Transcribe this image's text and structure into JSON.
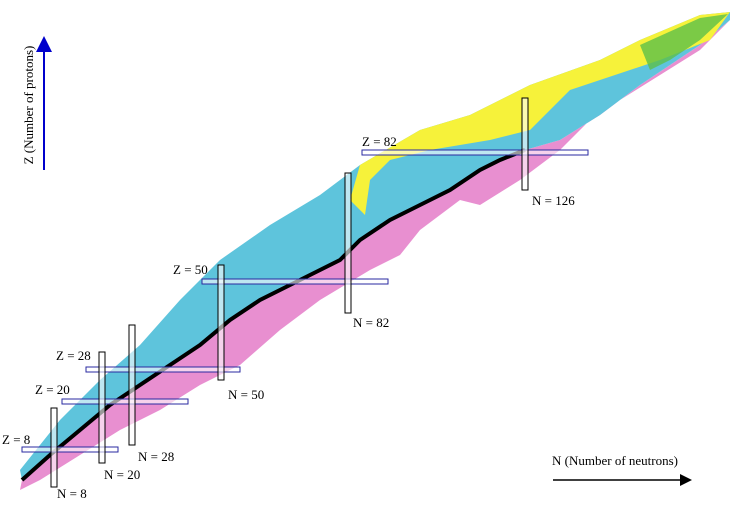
{
  "axes": {
    "y_label": "Z (Number of protons)",
    "x_label": "N (Number of neutrons)"
  },
  "proton_magic": [
    {
      "label": "Z = 8"
    },
    {
      "label": "Z = 20"
    },
    {
      "label": "Z = 28"
    },
    {
      "label": "Z = 50"
    },
    {
      "label": "Z = 82"
    }
  ],
  "neutron_magic": [
    {
      "label": "N = 8"
    },
    {
      "label": "N = 20"
    },
    {
      "label": "N = 28"
    },
    {
      "label": "N = 50"
    },
    {
      "label": "N = 82"
    },
    {
      "label": "N = 126"
    }
  ]
}
